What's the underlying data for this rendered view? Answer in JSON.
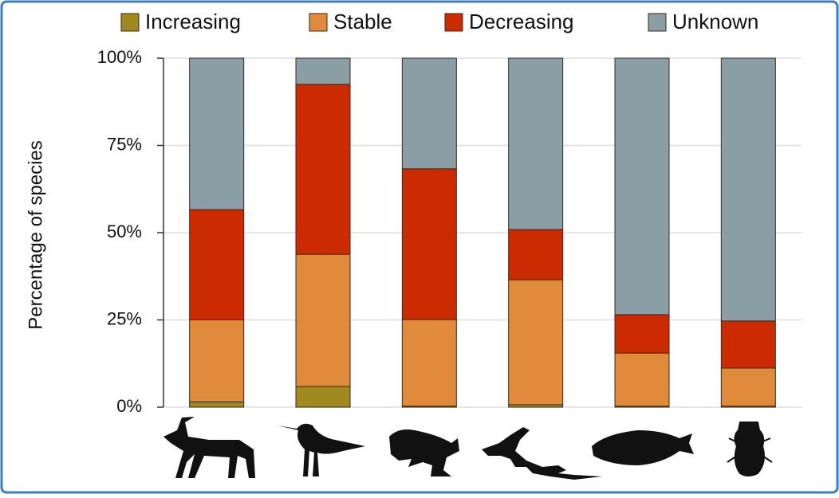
{
  "chart_data": {
    "type": "stacked_bar",
    "y_label": "Percentage of species",
    "categories": [
      null,
      null,
      null,
      null,
      null,
      null
    ],
    "series": [
      {
        "name": "Increasing",
        "color": "#a08a1e",
        "values": [
          1.5,
          5.9,
          0.3,
          0.7,
          0.3,
          0.3
        ]
      },
      {
        "name": "Stable",
        "color": "#e08a3c",
        "values": [
          23.5,
          37.9,
          24.8,
          35.8,
          15.2,
          10.9
        ]
      },
      {
        "name": "Decreasing",
        "color": "#cc2a00",
        "values": [
          31.6,
          48.7,
          43.2,
          14.4,
          11.0,
          13.5
        ]
      },
      {
        "name": "Unknown",
        "color": "#8a9ea6",
        "values": [
          43.4,
          7.5,
          31.7,
          49.1,
          73.5,
          75.3
        ]
      }
    ],
    "ylim": [
      0,
      100
    ],
    "yticks": [
      {
        "value": 0,
        "label": "0%"
      },
      {
        "value": 25,
        "label": "25%"
      },
      {
        "value": 50,
        "label": "50%"
      },
      {
        "value": 75,
        "label": "75%"
      },
      {
        "value": 100,
        "label": "100%"
      }
    ],
    "grid": true,
    "legend": "top"
  }
}
